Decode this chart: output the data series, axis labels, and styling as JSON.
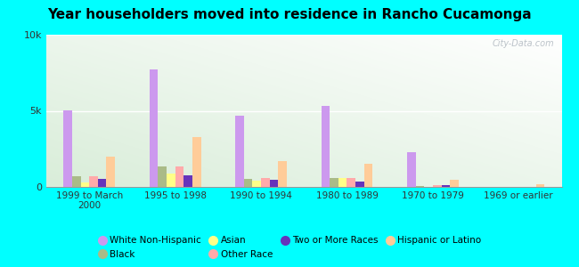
{
  "title": "Year householders moved into residence in Rancho Cucamonga",
  "background_color": "#00FFFF",
  "categories": [
    "1999 to March\n2000",
    "1995 to 1998",
    "1990 to 1994",
    "1980 to 1989",
    "1970 to 1979",
    "1969 or earlier"
  ],
  "series_order": [
    "White Non-Hispanic",
    "Black",
    "Asian",
    "Other Race",
    "Two or More Races",
    "Hispanic or Latino"
  ],
  "series": {
    "White Non-Hispanic": {
      "values": [
        5050,
        7700,
        4650,
        5350,
        2300,
        0
      ],
      "color": "#cc99ee"
    },
    "Black": {
      "values": [
        700,
        1350,
        500,
        600,
        30,
        0
      ],
      "color": "#aabb88"
    },
    "Asian": {
      "values": [
        300,
        900,
        400,
        600,
        0,
        0
      ],
      "color": "#ffff88"
    },
    "Other Race": {
      "values": [
        700,
        1350,
        600,
        600,
        100,
        0
      ],
      "color": "#ffaaaa"
    },
    "Two or More Races": {
      "values": [
        550,
        750,
        450,
        350,
        100,
        0
      ],
      "color": "#6633bb"
    },
    "Hispanic or Latino": {
      "values": [
        2000,
        3300,
        1700,
        1500,
        450,
        200
      ],
      "color": "#ffcc99"
    }
  },
  "ylim": [
    0,
    10000
  ],
  "yticks": [
    0,
    5000,
    10000
  ],
  "ytick_labels": [
    "0",
    "5k",
    "10k"
  ],
  "watermark": "City-Data.com",
  "legend_items": [
    [
      "White Non-Hispanic",
      "#cc99ee"
    ],
    [
      "Black",
      "#aabb88"
    ],
    [
      "Asian",
      "#ffff88"
    ],
    [
      "Other Race",
      "#ffaaaa"
    ],
    [
      "Two or More Races",
      "#6633bb"
    ],
    [
      "Hispanic or Latino",
      "#ffcc99"
    ]
  ]
}
